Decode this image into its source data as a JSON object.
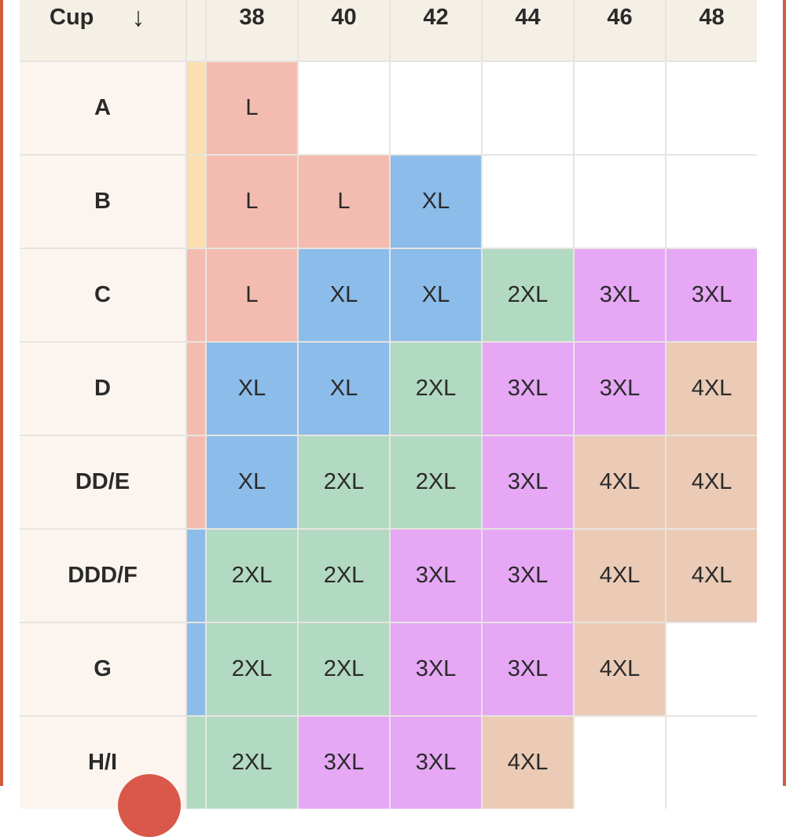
{
  "header": {
    "cup_label": "Cup",
    "arrow_icon": "↓",
    "band_sizes": [
      "38",
      "40",
      "42",
      "44",
      "46",
      "48"
    ]
  },
  "rows": [
    {
      "cup": "A",
      "cells": [
        "L",
        "",
        "",
        "",
        "",
        ""
      ]
    },
    {
      "cup": "B",
      "cells": [
        "L",
        "L",
        "XL",
        "",
        "",
        ""
      ]
    },
    {
      "cup": "C",
      "cells": [
        "L",
        "XL",
        "XL",
        "2XL",
        "3XL",
        "3XL"
      ]
    },
    {
      "cup": "D",
      "cells": [
        "XL",
        "XL",
        "2XL",
        "3XL",
        "3XL",
        "4XL"
      ]
    },
    {
      "cup": "DD/E",
      "cells": [
        "XL",
        "2XL",
        "2XL",
        "3XL",
        "4XL",
        "4XL"
      ]
    },
    {
      "cup": "DDD/F",
      "cells": [
        "2XL",
        "2XL",
        "3XL",
        "3XL",
        "4XL",
        "4XL"
      ]
    },
    {
      "cup": "G",
      "cells": [
        "2XL",
        "2XL",
        "3XL",
        "3XL",
        "4XL",
        ""
      ]
    },
    {
      "cup": "H/I",
      "cells": [
        "2XL",
        "3XL",
        "3XL",
        "4XL",
        "",
        ""
      ]
    }
  ],
  "size_colors": {
    "L": "#f4bcb0",
    "XL": "#8cbce9",
    "2XL": "#b2d9c2",
    "3XL": "#e6a7f5",
    "4XL": "#ebcbb6"
  },
  "colors": {
    "frame": "#d35a3f",
    "header_bg": "#f5f0e6",
    "row_label_bg": "#fcf5ef",
    "fab": "#d9584a"
  }
}
